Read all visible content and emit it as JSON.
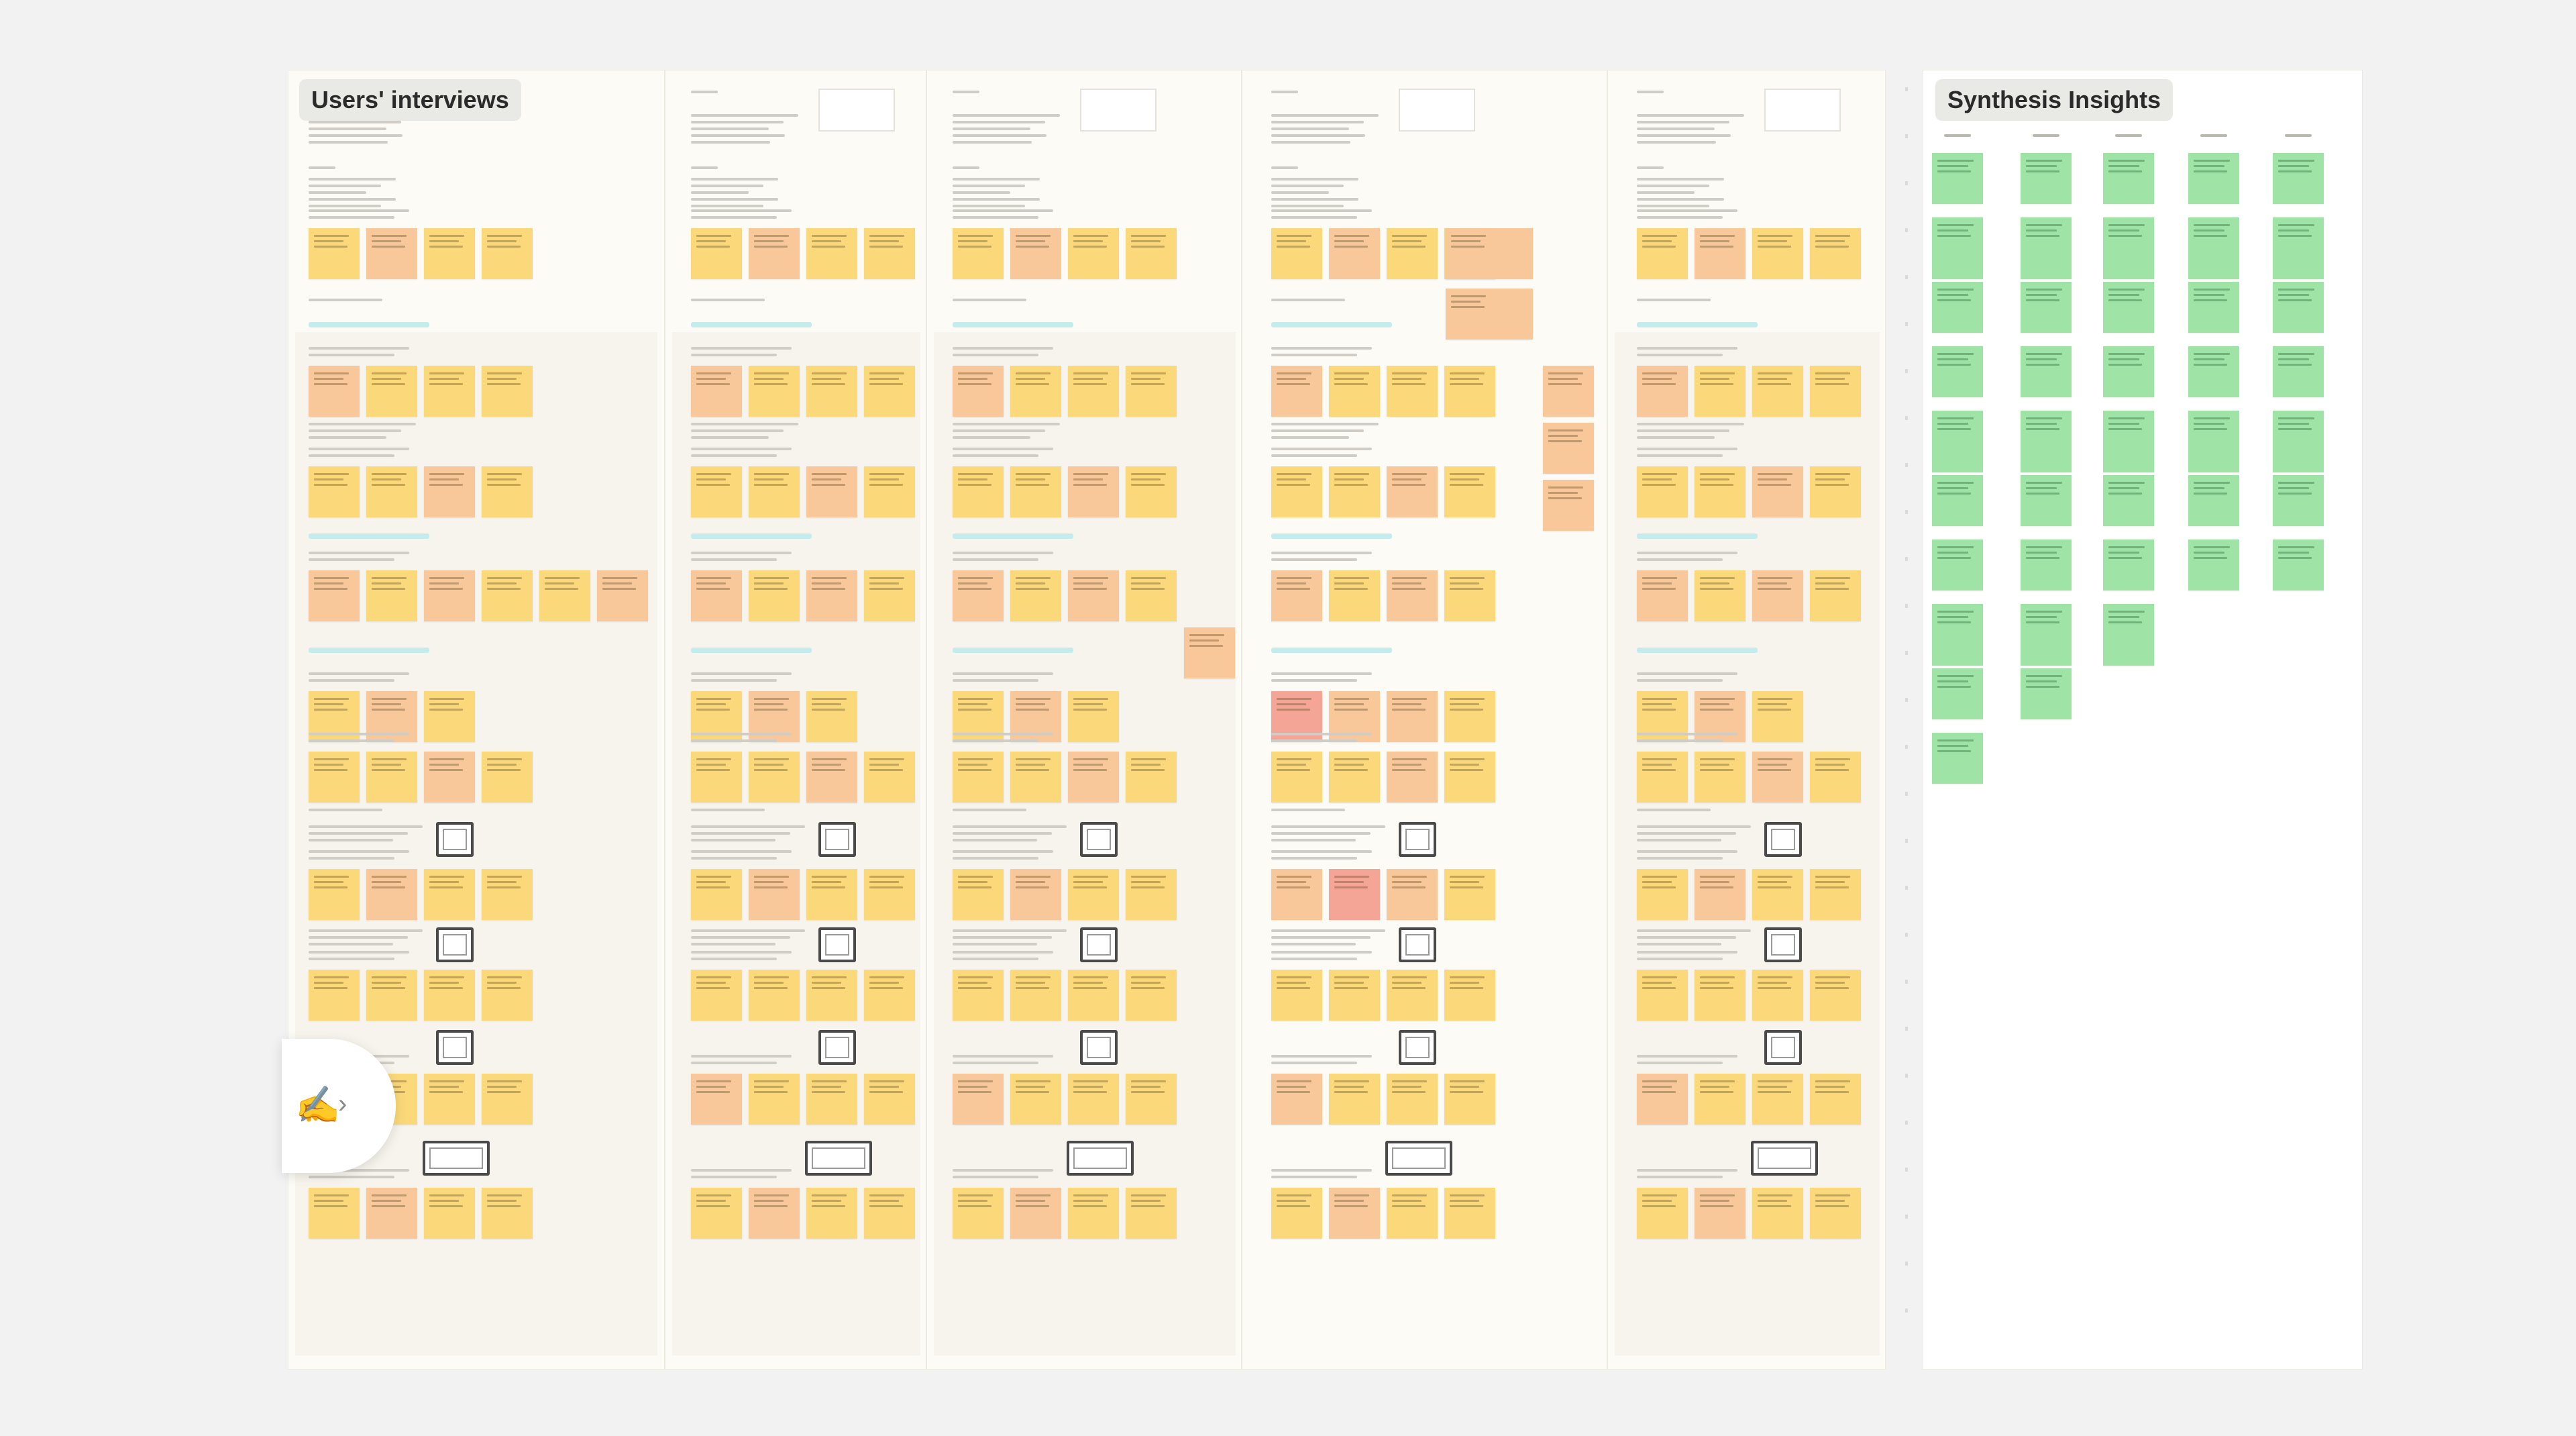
{
  "boards": {
    "users_title": "Users' interviews",
    "synth_title": "Synthesis Insights"
  },
  "colors": {
    "canvas": "#f1f2f1",
    "sticky_yellow": "#fbd97a",
    "sticky_orange": "#f8c89a",
    "sticky_red": "#f4a596",
    "sticky_green": "#9fe3a6",
    "highlight_cyan": "#c4ecec"
  },
  "icons": {
    "feedback_button": "hand-pointer-icon",
    "feedback_chevron": "chevron-right-icon"
  }
}
